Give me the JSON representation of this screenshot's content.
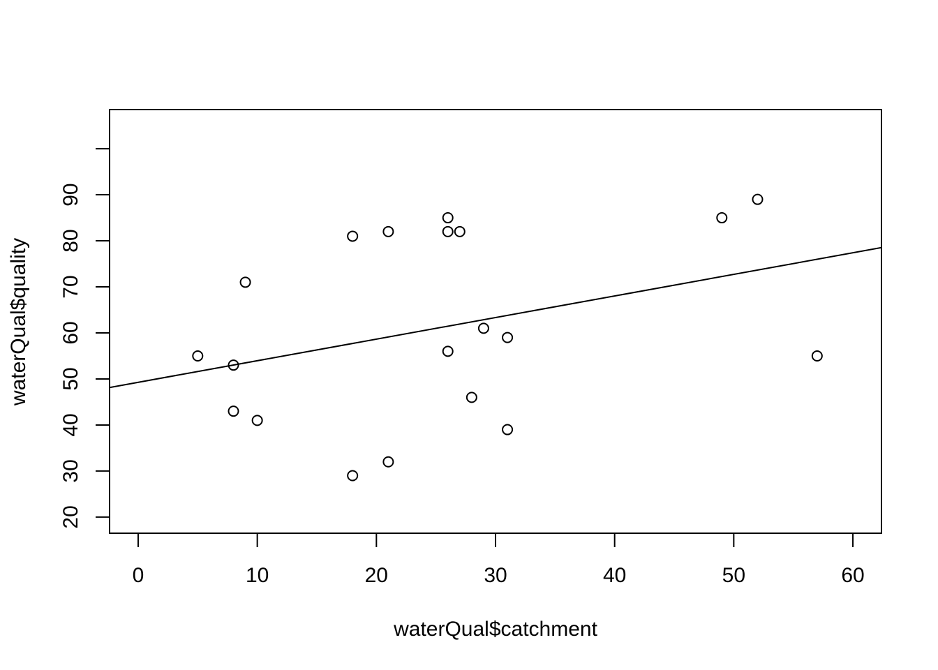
{
  "chart_data": {
    "type": "scatter",
    "title": "",
    "xlabel": "waterQual$catchment",
    "ylabel": "waterQual$quality",
    "xlim": [
      -2.4,
      62.4
    ],
    "ylim": [
      16.5,
      108.5
    ],
    "x_ticks": [
      0,
      10,
      20,
      30,
      40,
      50,
      60
    ],
    "y_ticks": [
      20,
      30,
      40,
      50,
      60,
      70,
      80,
      90,
      100
    ],
    "y_tick_labels": [
      "20",
      "30",
      "40",
      "50",
      "60",
      "70",
      "80",
      "90",
      ""
    ],
    "grid": false,
    "legend": "none",
    "points": [
      {
        "x": 5,
        "y": 55
      },
      {
        "x": 8,
        "y": 53
      },
      {
        "x": 8,
        "y": 43
      },
      {
        "x": 9,
        "y": 71
      },
      {
        "x": 10,
        "y": 41
      },
      {
        "x": 18,
        "y": 81
      },
      {
        "x": 18,
        "y": 29
      },
      {
        "x": 21,
        "y": 82
      },
      {
        "x": 21,
        "y": 32
      },
      {
        "x": 26,
        "y": 85
      },
      {
        "x": 26,
        "y": 82
      },
      {
        "x": 26,
        "y": 56
      },
      {
        "x": 27,
        "y": 82
      },
      {
        "x": 28,
        "y": 46
      },
      {
        "x": 29,
        "y": 61
      },
      {
        "x": 31,
        "y": 59
      },
      {
        "x": 31,
        "y": 39
      },
      {
        "x": 49,
        "y": 85
      },
      {
        "x": 52,
        "y": 89
      },
      {
        "x": 57,
        "y": 55
      }
    ],
    "fit_line": {
      "intercept": 49.27,
      "slope": 0.4688
    },
    "colors": {
      "points": "#000000",
      "line": "#000000",
      "background": "#ffffff"
    }
  }
}
